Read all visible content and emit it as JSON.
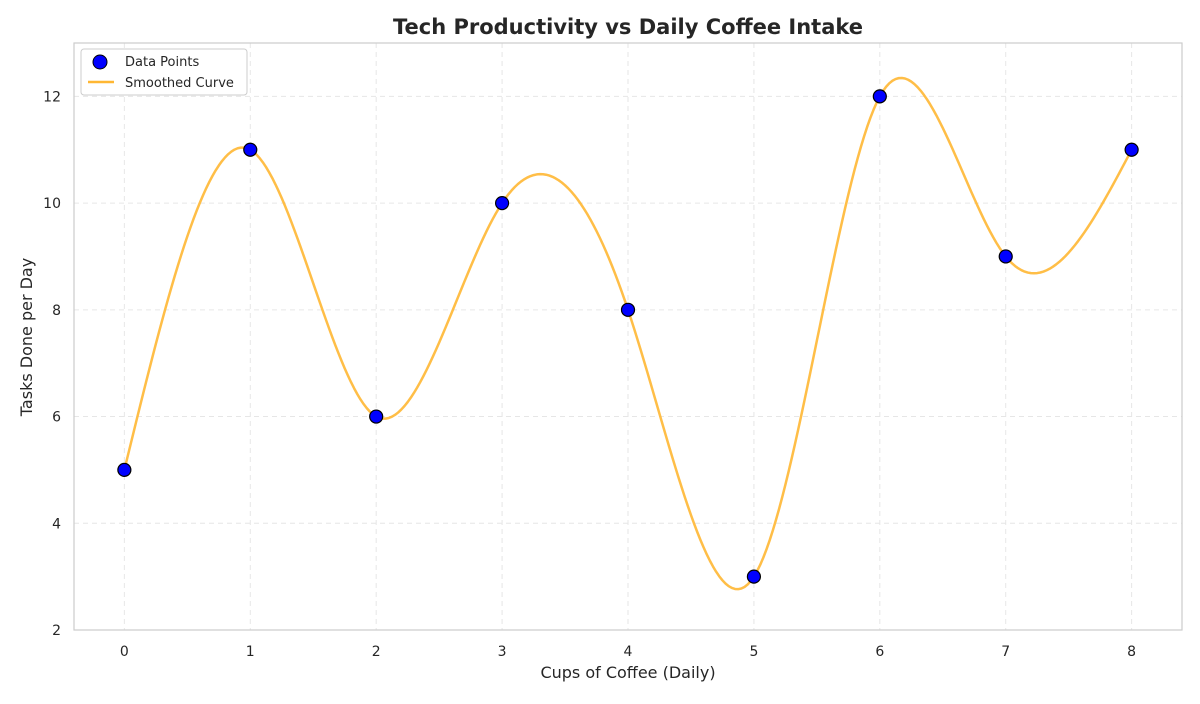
{
  "chart_data": {
    "type": "scatter",
    "title": "Tech Productivity vs Daily Coffee Intake",
    "xlabel": "Cups of Coffee (Daily)",
    "ylabel": "Tasks Done per Day",
    "xlim": [
      -0.4,
      8.4
    ],
    "ylim": [
      2,
      13
    ],
    "x_ticks": [
      0,
      1,
      2,
      3,
      4,
      5,
      6,
      7,
      8
    ],
    "y_ticks": [
      2,
      4,
      6,
      8,
      10,
      12
    ],
    "grid": true,
    "legend_position": "top-left",
    "series": [
      {
        "name": "Data Points",
        "kind": "scatter",
        "x": [
          0,
          1,
          2,
          3,
          4,
          5,
          6,
          7,
          8
        ],
        "y": [
          5,
          11,
          6,
          10,
          8,
          3,
          12,
          9,
          11
        ],
        "color": "#0000ff",
        "edge_color": "#000000"
      },
      {
        "name": "Smoothed Curve",
        "kind": "line",
        "interpolation": "cubic-spline",
        "color": "#ffb733"
      }
    ]
  }
}
